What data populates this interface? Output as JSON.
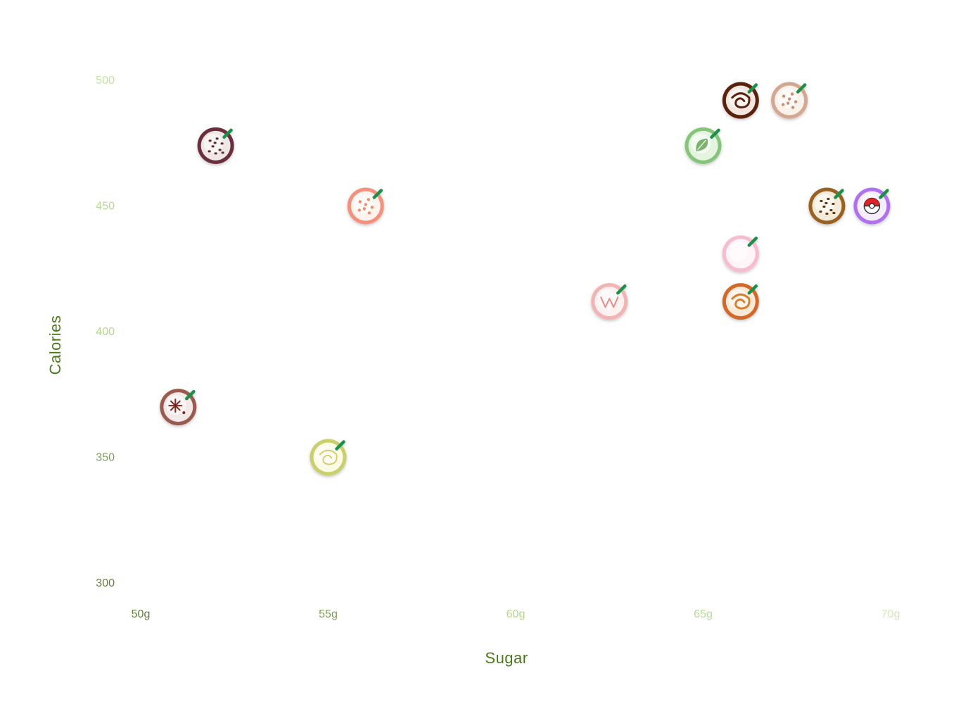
{
  "chart_data": {
    "type": "scatter",
    "title": "",
    "xlabel": "Sugar",
    "ylabel": "Calories",
    "xlim": [
      50,
      70
    ],
    "ylim": [
      300,
      500
    ],
    "x_ticks": [
      50,
      55,
      60,
      65,
      70
    ],
    "x_tick_labels": [
      "50g",
      "55g",
      "60g",
      "65g",
      "70g"
    ],
    "y_ticks": [
      300,
      350,
      400,
      450,
      500
    ],
    "y_tick_labels": [
      "300",
      "350",
      "400",
      "450",
      "500"
    ],
    "grid": false,
    "legend": "none",
    "points": [
      {
        "x": 52,
        "y": 474,
        "ring": "#6b2f3c",
        "fill": "#efe6e6",
        "topping": "chips",
        "topping_color": "#5a2a30"
      },
      {
        "x": 56,
        "y": 450,
        "ring": "#f4917c",
        "fill": "#fff3ee",
        "topping": "dots",
        "topping_color": "#e8906c"
      },
      {
        "x": 51,
        "y": 370,
        "ring": "#9a5a50",
        "fill": "#f3e9e8",
        "topping": "star",
        "topping_color": "#7a2a20"
      },
      {
        "x": 55,
        "y": 350,
        "ring": "#c9cf6a",
        "fill": "#fbfbe6",
        "topping": "swirl-light",
        "topping_color": "#d8c860"
      },
      {
        "x": 62.5,
        "y": 412,
        "ring": "#f2b3b3",
        "fill": "#fdf1f1",
        "topping": "zigzag",
        "topping_color": "#e88a8a"
      },
      {
        "x": 65,
        "y": 474,
        "ring": "#86c47a",
        "fill": "#e5f4df",
        "topping": "leaf",
        "topping_color": "#5ea050"
      },
      {
        "x": 66,
        "y": 492,
        "ring": "#5a2410",
        "fill": "#f3e6de",
        "topping": "swirl",
        "topping_color": "#5a2410"
      },
      {
        "x": 67.3,
        "y": 492,
        "ring": "#d4a890",
        "fill": "#fbf2ec",
        "topping": "dots",
        "topping_color": "#c89070"
      },
      {
        "x": 68.3,
        "y": 450,
        "ring": "#9a6220",
        "fill": "#f3ead8",
        "topping": "chips",
        "topping_color": "#5a3410"
      },
      {
        "x": 69.5,
        "y": 450,
        "ring": "#b070f0",
        "fill": "#f6eefd",
        "topping": "ball",
        "topping_color": "#e02020"
      },
      {
        "x": 66,
        "y": 431,
        "ring": "#f8bcd0",
        "fill": "#fff4f8",
        "topping": "none",
        "topping_color": "#f0a0b8"
      },
      {
        "x": 66,
        "y": 412,
        "ring": "#d2692a",
        "fill": "#fbe9d8",
        "topping": "swirl",
        "topping_color": "#d88030"
      }
    ]
  },
  "colors": {
    "axis_dark": "#5f7f3e",
    "axis_mid": "#8fb565",
    "axis_light": "#bcdc98",
    "axis_lightest": "#d4e6bf",
    "tick_y": "#b9da93",
    "title_color": "#4a7a1c",
    "straw": "#1f8f4a"
  }
}
